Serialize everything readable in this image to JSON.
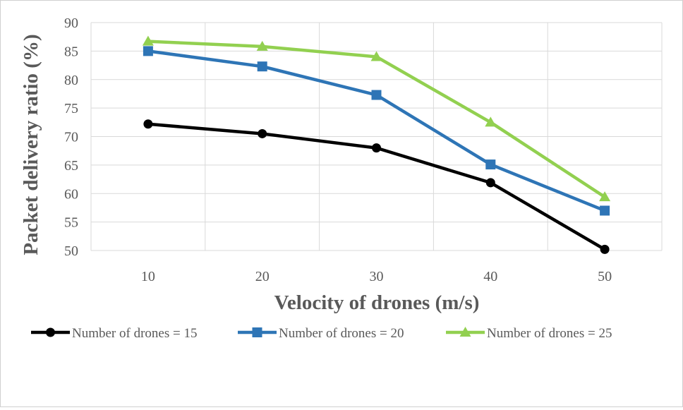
{
  "chart_data": {
    "type": "line",
    "title": "",
    "xlabel": "Velocity of drones (m/s)",
    "ylabel": "Packet delivery ratio (%)",
    "categories": [
      "10",
      "20",
      "30",
      "40",
      "50"
    ],
    "ylim": [
      50,
      90
    ],
    "yticks": [
      "50",
      "55",
      "60",
      "65",
      "70",
      "75",
      "80",
      "85",
      "90"
    ],
    "grid": true,
    "legend_position": "bottom",
    "series": [
      {
        "name": "Number of drones = 15",
        "values": [
          72.2,
          70.5,
          68.0,
          61.9,
          50.2
        ],
        "color": "#000000",
        "marker": "circle"
      },
      {
        "name": "Number of drones = 20",
        "values": [
          85.0,
          82.3,
          77.3,
          65.1,
          57.0
        ],
        "color": "#2e75b6",
        "marker": "square"
      },
      {
        "name": "Number of drones = 25",
        "values": [
          86.7,
          85.8,
          84.0,
          72.5,
          59.4
        ],
        "color": "#92d050",
        "marker": "triangle"
      }
    ]
  }
}
